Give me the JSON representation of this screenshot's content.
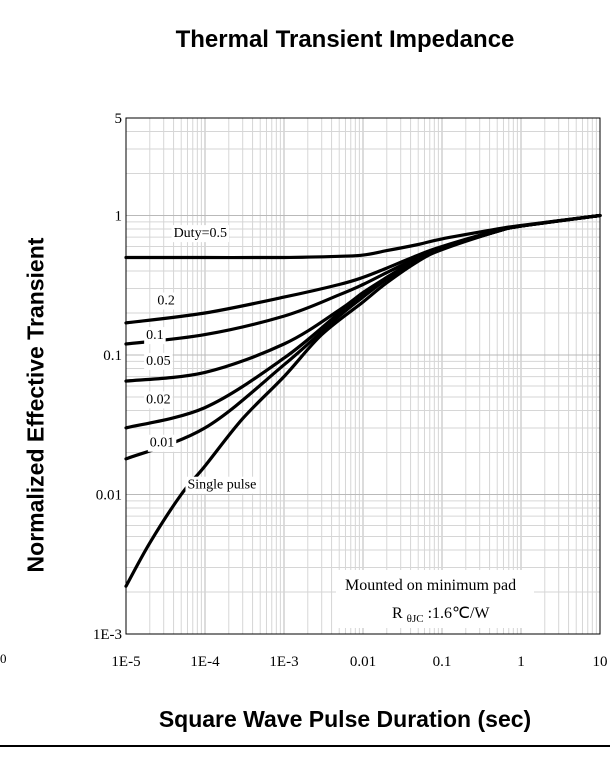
{
  "page": {
    "stray_label": "0"
  },
  "chart_data": {
    "type": "line",
    "title": "Thermal Transient Impedance",
    "xlabel": "Square Wave Pulse Duration (sec)",
    "ylabel": "Normalized Effective Transient",
    "x_scale": "log",
    "y_scale": "log",
    "xlim": [
      1e-05,
      10
    ],
    "ylim": [
      0.001,
      5
    ],
    "grid": true,
    "x_ticks": [
      {
        "value": 1e-05,
        "label": "1E-5"
      },
      {
        "value": 0.0001,
        "label": "1E-4"
      },
      {
        "value": 0.001,
        "label": "1E-3"
      },
      {
        "value": 0.01,
        "label": "0.01"
      },
      {
        "value": 0.1,
        "label": "0.1"
      },
      {
        "value": 1,
        "label": "1"
      },
      {
        "value": 10,
        "label": "10"
      }
    ],
    "y_ticks": [
      {
        "value": 5,
        "label": "5"
      },
      {
        "value": 1,
        "label": "1"
      },
      {
        "value": 0.1,
        "label": "0.1"
      },
      {
        "value": 0.01,
        "label": "0.01"
      },
      {
        "value": 0.001,
        "label": "1E-3"
      }
    ],
    "series": [
      {
        "name": "Duty=0.5",
        "label_at": [
          4e-05,
          0.7
        ],
        "x": [
          1e-05,
          0.0001,
          0.001,
          0.005,
          0.01,
          0.02,
          0.05,
          0.1,
          0.5,
          1,
          10
        ],
        "y": [
          0.5,
          0.5,
          0.5,
          0.51,
          0.52,
          0.56,
          0.62,
          0.68,
          0.8,
          0.85,
          1.0
        ]
      },
      {
        "name": "0.2",
        "label_at": [
          2.5e-05,
          0.23
        ],
        "x": [
          1e-05,
          0.0001,
          0.001,
          0.005,
          0.01,
          0.02,
          0.05,
          0.1,
          0.5,
          1,
          10
        ],
        "y": [
          0.17,
          0.2,
          0.26,
          0.32,
          0.36,
          0.42,
          0.52,
          0.6,
          0.78,
          0.84,
          1.0
        ]
      },
      {
        "name": "0.1",
        "label_at": [
          1.8e-05,
          0.13
        ],
        "x": [
          1e-05,
          0.0001,
          0.001,
          0.005,
          0.01,
          0.02,
          0.05,
          0.1,
          0.5,
          1,
          10
        ],
        "y": [
          0.12,
          0.14,
          0.19,
          0.27,
          0.32,
          0.39,
          0.5,
          0.59,
          0.78,
          0.84,
          1.0
        ]
      },
      {
        "name": "0.05",
        "label_at": [
          1.8e-05,
          0.085
        ],
        "x": [
          1e-05,
          0.0001,
          0.001,
          0.005,
          0.01,
          0.02,
          0.05,
          0.1,
          0.5,
          1,
          10
        ],
        "y": [
          0.065,
          0.075,
          0.12,
          0.21,
          0.28,
          0.36,
          0.49,
          0.58,
          0.77,
          0.84,
          1.0
        ]
      },
      {
        "name": "0.02",
        "label_at": [
          1.8e-05,
          0.045
        ],
        "x": [
          1e-05,
          0.0001,
          0.001,
          0.005,
          0.01,
          0.02,
          0.05,
          0.1,
          0.5,
          1,
          10
        ],
        "y": [
          0.03,
          0.042,
          0.095,
          0.2,
          0.27,
          0.36,
          0.48,
          0.58,
          0.77,
          0.84,
          1.0
        ]
      },
      {
        "name": "0.01",
        "label_at": [
          2e-05,
          0.022
        ],
        "x": [
          1e-05,
          0.0001,
          0.001,
          0.005,
          0.01,
          0.02,
          0.05,
          0.1,
          0.5,
          1,
          10
        ],
        "y": [
          0.018,
          0.03,
          0.085,
          0.19,
          0.26,
          0.35,
          0.48,
          0.58,
          0.77,
          0.84,
          1.0
        ]
      },
      {
        "name": "Single pulse",
        "label_at": [
          6e-05,
          0.011
        ],
        "x": [
          1e-05,
          2e-05,
          5e-05,
          0.0001,
          0.0003,
          0.001,
          0.003,
          0.01,
          0.02,
          0.05,
          0.1,
          0.5,
          1,
          10
        ],
        "y": [
          0.0022,
          0.0045,
          0.01,
          0.016,
          0.035,
          0.07,
          0.14,
          0.24,
          0.33,
          0.47,
          0.57,
          0.77,
          0.84,
          1.0
        ]
      }
    ],
    "annotation": {
      "line1": "Mounted on minimum pad",
      "line2_prefix": "R",
      "line2_sub": "θJC",
      "line2_value": ":1.6℃/W"
    }
  }
}
